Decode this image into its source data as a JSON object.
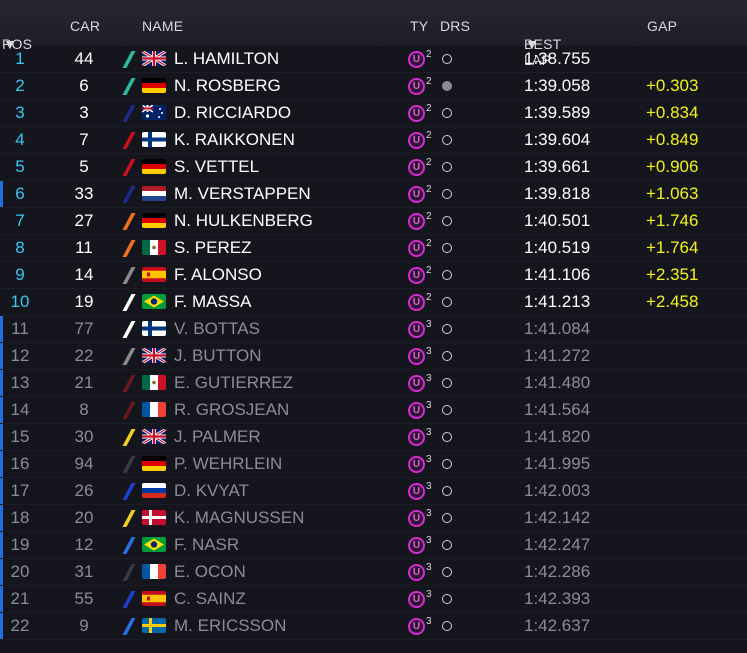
{
  "header": {
    "pos": "POS",
    "car": "CAR",
    "name": "NAME",
    "ty": "TY",
    "drs": "DRS",
    "best_lap": "BEST LAP",
    "gap": "GAP",
    "sort_indicator": "▼"
  },
  "colors": {
    "position_text": "#38c8f0",
    "gap_text": "#f2f218",
    "tyre_ring": "#d82bd3",
    "row_marker": "#1f6fe0"
  },
  "rows": [
    {
      "pos": "1",
      "car": "44",
      "name": "L. HAMILTON",
      "flag": "gb",
      "team_color": "#2fb8a0",
      "tyre": "U",
      "tyre_age": "2",
      "drs": false,
      "best": "1:38.755",
      "gap": "",
      "dim": false,
      "mark": false
    },
    {
      "pos": "2",
      "car": "6",
      "name": "N. ROSBERG",
      "flag": "de",
      "team_color": "#2fb8a0",
      "tyre": "U",
      "tyre_age": "2",
      "drs": true,
      "best": "1:39.058",
      "gap": "+0.303",
      "dim": false,
      "mark": false
    },
    {
      "pos": "3",
      "car": "3",
      "name": "D. RICCIARDO",
      "flag": "au",
      "team_color": "#1e2a8c",
      "tyre": "U",
      "tyre_age": "2",
      "drs": false,
      "best": "1:39.589",
      "gap": "+0.834",
      "dim": false,
      "mark": false
    },
    {
      "pos": "4",
      "car": "7",
      "name": "K. RAIKKONEN",
      "flag": "fi",
      "team_color": "#c8101e",
      "tyre": "U",
      "tyre_age": "2",
      "drs": false,
      "best": "1:39.604",
      "gap": "+0.849",
      "dim": false,
      "mark": false
    },
    {
      "pos": "5",
      "car": "5",
      "name": "S. VETTEL",
      "flag": "de",
      "team_color": "#c8101e",
      "tyre": "U",
      "tyre_age": "2",
      "drs": false,
      "best": "1:39.661",
      "gap": "+0.906",
      "dim": false,
      "mark": false
    },
    {
      "pos": "6",
      "car": "33",
      "name": "M. VERSTAPPEN",
      "flag": "nl",
      "team_color": "#1e2a8c",
      "tyre": "U",
      "tyre_age": "2",
      "drs": false,
      "best": "1:39.818",
      "gap": "+1.063",
      "dim": false,
      "mark": true
    },
    {
      "pos": "7",
      "car": "27",
      "name": "N. HULKENBERG",
      "flag": "de",
      "team_color": "#f07020",
      "tyre": "U",
      "tyre_age": "2",
      "drs": false,
      "best": "1:40.501",
      "gap": "+1.746",
      "dim": false,
      "mark": false
    },
    {
      "pos": "8",
      "car": "11",
      "name": "S. PEREZ",
      "flag": "mx",
      "team_color": "#f07020",
      "tyre": "U",
      "tyre_age": "2",
      "drs": false,
      "best": "1:40.519",
      "gap": "+1.764",
      "dim": false,
      "mark": false
    },
    {
      "pos": "9",
      "car": "14",
      "name": "F. ALONSO",
      "flag": "es",
      "team_color": "#8a8a8a",
      "tyre": "U",
      "tyre_age": "2",
      "drs": false,
      "best": "1:41.106",
      "gap": "+2.351",
      "dim": false,
      "mark": false
    },
    {
      "pos": "10",
      "car": "19",
      "name": "F. MASSA",
      "flag": "br",
      "team_color": "#ffffff",
      "tyre": "U",
      "tyre_age": "2",
      "drs": false,
      "best": "1:41.213",
      "gap": "+2.458",
      "dim": false,
      "mark": false
    },
    {
      "pos": "11",
      "car": "77",
      "name": "V. BOTTAS",
      "flag": "fi",
      "team_color": "#ffffff",
      "tyre": "U",
      "tyre_age": "3",
      "drs": false,
      "best": "1:41.084",
      "gap": "",
      "dim": true,
      "mark": true
    },
    {
      "pos": "12",
      "car": "22",
      "name": "J. BUTTON",
      "flag": "gb",
      "team_color": "#8a8a8a",
      "tyre": "U",
      "tyre_age": "3",
      "drs": false,
      "best": "1:41.272",
      "gap": "",
      "dim": true,
      "mark": true
    },
    {
      "pos": "13",
      "car": "21",
      "name": "E. GUTIERREZ",
      "flag": "mx",
      "team_color": "#6a1a1e",
      "tyre": "U",
      "tyre_age": "3",
      "drs": false,
      "best": "1:41.480",
      "gap": "",
      "dim": true,
      "mark": true
    },
    {
      "pos": "14",
      "car": "8",
      "name": "R. GROSJEAN",
      "flag": "fr",
      "team_color": "#6a1a1e",
      "tyre": "U",
      "tyre_age": "3",
      "drs": false,
      "best": "1:41.564",
      "gap": "",
      "dim": true,
      "mark": true
    },
    {
      "pos": "15",
      "car": "30",
      "name": "J. PALMER",
      "flag": "gb",
      "team_color": "#f0d020",
      "tyre": "U",
      "tyre_age": "3",
      "drs": false,
      "best": "1:41.820",
      "gap": "",
      "dim": true,
      "mark": true
    },
    {
      "pos": "16",
      "car": "94",
      "name": "P. WEHRLEIN",
      "flag": "de",
      "team_color": "#3a3a42",
      "tyre": "U",
      "tyre_age": "3",
      "drs": false,
      "best": "1:41.995",
      "gap": "",
      "dim": true,
      "mark": true
    },
    {
      "pos": "17",
      "car": "26",
      "name": "D. KVYAT",
      "flag": "ru",
      "team_color": "#1e40d0",
      "tyre": "U",
      "tyre_age": "3",
      "drs": false,
      "best": "1:42.003",
      "gap": "",
      "dim": true,
      "mark": true
    },
    {
      "pos": "18",
      "car": "20",
      "name": "K. MAGNUSSEN",
      "flag": "dk",
      "team_color": "#f0d020",
      "tyre": "U",
      "tyre_age": "3",
      "drs": false,
      "best": "1:42.142",
      "gap": "",
      "dim": true,
      "mark": true
    },
    {
      "pos": "19",
      "car": "12",
      "name": "F. NASR",
      "flag": "br",
      "team_color": "#2a70e0",
      "tyre": "U",
      "tyre_age": "3",
      "drs": false,
      "best": "1:42.247",
      "gap": "",
      "dim": true,
      "mark": true
    },
    {
      "pos": "20",
      "car": "31",
      "name": "E. OCON",
      "flag": "fr",
      "team_color": "#3a3a42",
      "tyre": "U",
      "tyre_age": "3",
      "drs": false,
      "best": "1:42.286",
      "gap": "",
      "dim": true,
      "mark": true
    },
    {
      "pos": "21",
      "car": "55",
      "name": "C. SAINZ",
      "flag": "es",
      "team_color": "#1e40d0",
      "tyre": "U",
      "tyre_age": "3",
      "drs": false,
      "best": "1:42.393",
      "gap": "",
      "dim": true,
      "mark": true
    },
    {
      "pos": "22",
      "car": "9",
      "name": "M. ERICSSON",
      "flag": "se",
      "team_color": "#2a70e0",
      "tyre": "U",
      "tyre_age": "3",
      "drs": false,
      "best": "1:42.637",
      "gap": "",
      "dim": true,
      "mark": true
    }
  ]
}
